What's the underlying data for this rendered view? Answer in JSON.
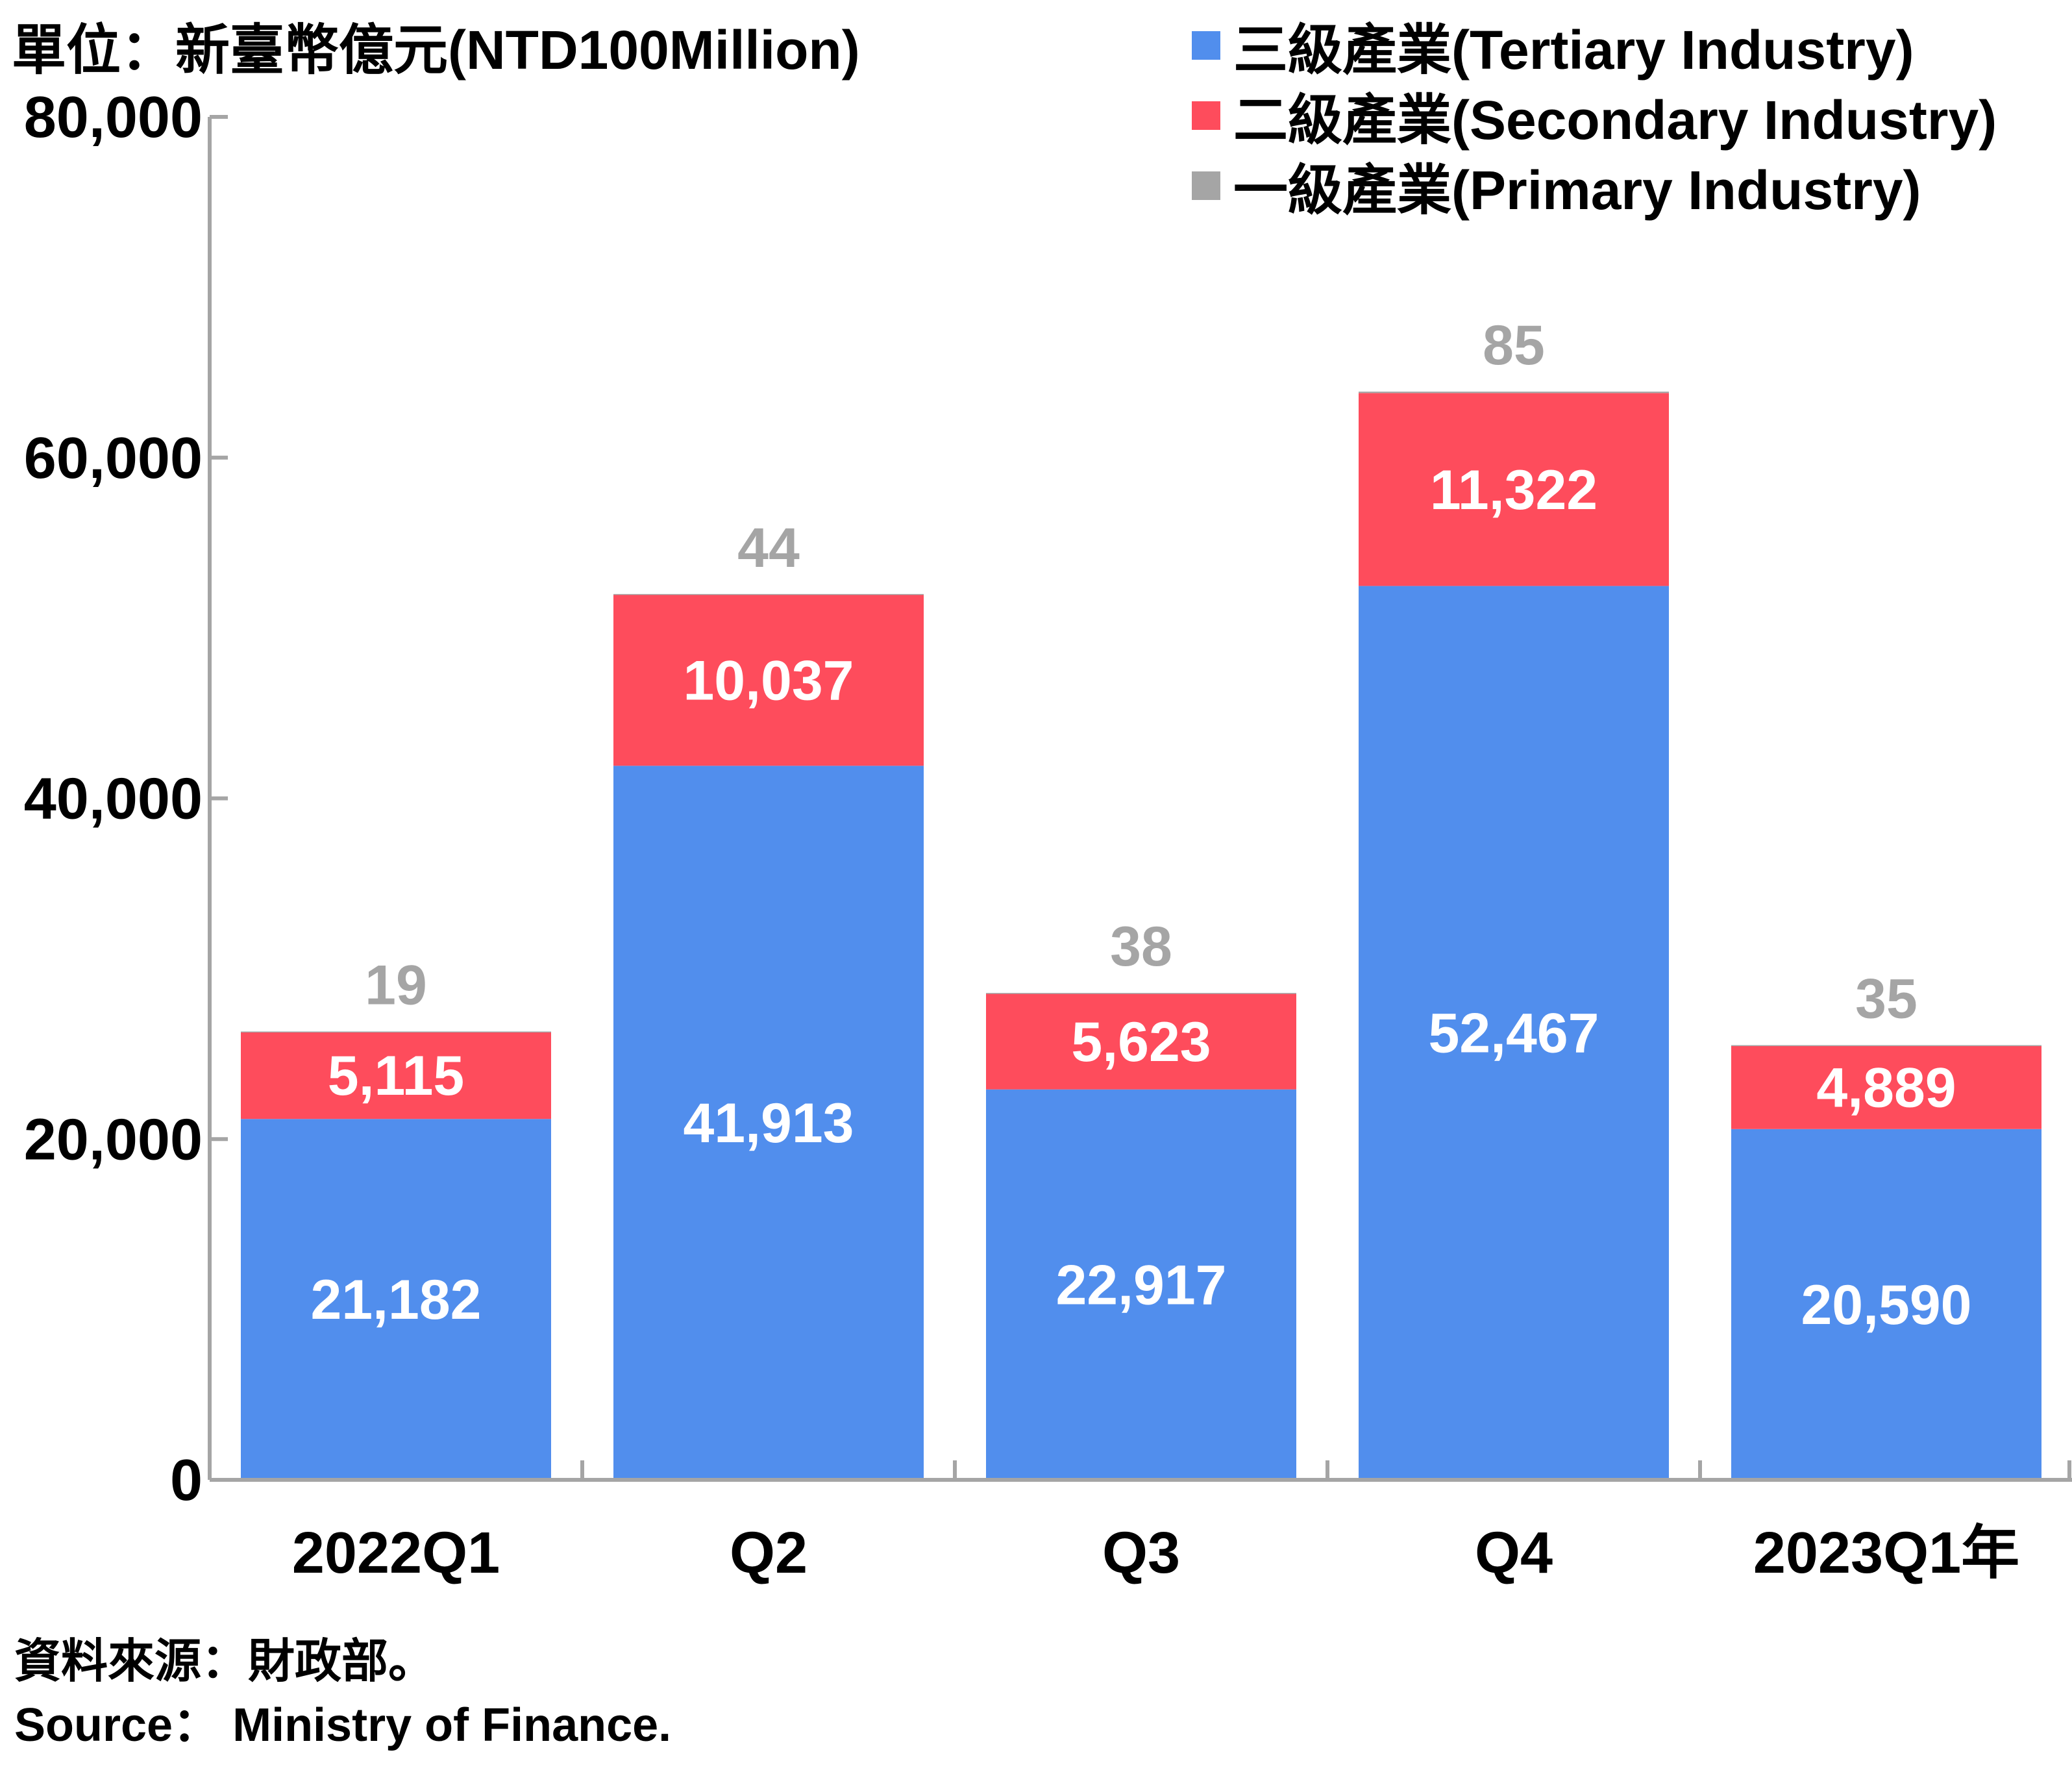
{
  "unit_label": "單位：新臺幣億元(NTD100Million)",
  "legend": [
    {
      "label": "三級產業(Tertiary Industry)",
      "color": "#518eed"
    },
    {
      "label": "二級產業(Secondary Industry)",
      "color": "#fe4c5c"
    },
    {
      "label": "一級產業(Primary Industry)",
      "color": "#a5a5a5"
    }
  ],
  "source": {
    "zh": "資料來源：財政部。",
    "en": "Source： Ministry of Finance."
  },
  "chart_data": {
    "type": "bar",
    "stacked": true,
    "categories": [
      "2022Q1",
      "Q2",
      "Q3",
      "Q4",
      "2023Q1年"
    ],
    "series": [
      {
        "name": "三級產業(Tertiary Industry)",
        "color": "#518eed",
        "label_color": "#ffffff",
        "values": [
          21182,
          41913,
          22917,
          52467,
          20590
        ],
        "labels": [
          "21,182",
          "41,913",
          "22,917",
          "52,467",
          "20,590"
        ]
      },
      {
        "name": "二級產業(Secondary Industry)",
        "color": "#fe4c5c",
        "label_color": "#ffffff",
        "values": [
          5115,
          10037,
          5623,
          11322,
          4889
        ],
        "labels": [
          "5,115",
          "10,037",
          "5,623",
          "11,322",
          "4,889"
        ]
      },
      {
        "name": "一級產業(Primary Industry)",
        "color": "#a5a5a5",
        "label_color": "#a5a5a5",
        "values": [
          19,
          44,
          38,
          85,
          35
        ],
        "labels": [
          "19",
          "44",
          "38",
          "85",
          "35"
        ]
      }
    ],
    "ylim": [
      0,
      80000
    ],
    "yticks": [
      0,
      20000,
      40000,
      60000,
      80000
    ],
    "ytick_labels": [
      "0",
      "20,000",
      "40,000",
      "60,000",
      "80,000"
    ],
    "grid": false,
    "legend_position": "top-right"
  }
}
